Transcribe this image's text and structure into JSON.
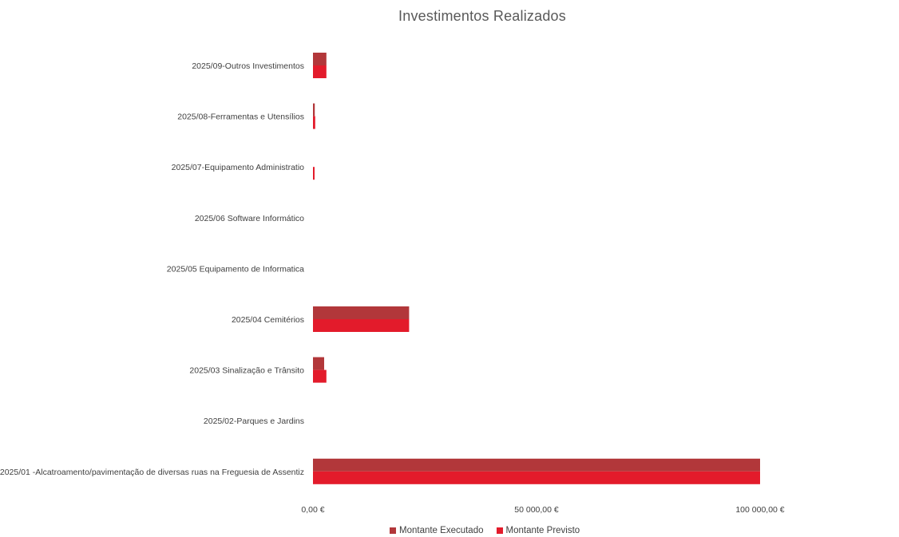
{
  "chart_data": {
    "type": "bar",
    "orientation": "horizontal",
    "title": "Investimentos Realizados",
    "categories": [
      "2025/09-Outros Investimentos",
      "2025/08-Ferramentas e Utensílios",
      "2025/07-Equipamento Administratio",
      "2025/06 Software Informático",
      "2025/05 Equipamento de Informatica",
      "2025/04 Cemitérios",
      "2025/03 Sinalização e Trânsito",
      "2025/02-Parques e Jardins",
      "2025/01 -Alcatroamento/pavimentação de diversas ruas na Freguesia de Assentiz"
    ],
    "series": [
      {
        "name": "Montante Executado",
        "color": "#b2373a",
        "values": [
          3000,
          400,
          0,
          0,
          0,
          21500,
          2500,
          0,
          100000
        ]
      },
      {
        "name": "Montante Previsto",
        "color": "#e31b2b",
        "values": [
          3000,
          500,
          300,
          0,
          0,
          21500,
          3000,
          0,
          100000
        ]
      }
    ],
    "xlim": [
      0,
      125000
    ],
    "x_ticks": [
      {
        "value": 0,
        "label": "0,00 €"
      },
      {
        "value": 50000,
        "label": "50 000,00 €"
      },
      {
        "value": 100000,
        "label": "100 000,00 €"
      }
    ],
    "grid": false,
    "legend_position": "bottom"
  }
}
